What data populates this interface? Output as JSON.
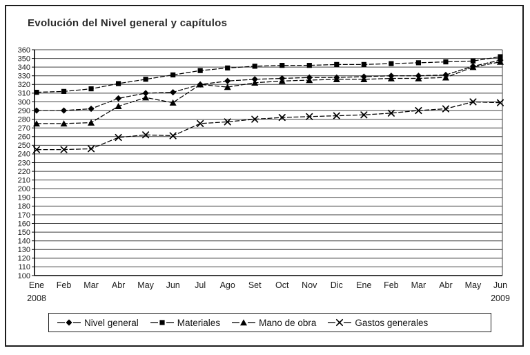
{
  "chart_data": {
    "type": "line",
    "title": "Evolución del Nivel general y capítulos",
    "categories": [
      "Ene",
      "Feb",
      "Mar",
      "Abr",
      "May",
      "Jun",
      "Jul",
      "Ago",
      "Set",
      "Oct",
      "Nov",
      "Dic",
      "Ene",
      "Feb",
      "Mar",
      "Abr",
      "May",
      "Jun"
    ],
    "year_labels": [
      {
        "index": 0,
        "label": "2008"
      },
      {
        "index": 17,
        "label": "2009"
      }
    ],
    "ylim": [
      100,
      360
    ],
    "ytick_step": 10,
    "grid": true,
    "legend_position": "bottom",
    "line_color": "#000000",
    "grid_color": "#3d3d3d",
    "axis_text_color": "#1a1a1a",
    "series": [
      {
        "name": "Nivel general",
        "marker": "diamond",
        "values": [
          290,
          290,
          292,
          304,
          310,
          311,
          320,
          324,
          326,
          327,
          328,
          328,
          329,
          330,
          330,
          331,
          341,
          348
        ]
      },
      {
        "name": "Materiales",
        "marker": "square",
        "values": [
          311,
          312,
          315,
          321,
          326,
          331,
          336,
          339,
          341,
          342,
          342,
          343,
          343,
          344,
          345,
          346,
          347,
          352
        ]
      },
      {
        "name": "Mano de obra",
        "marker": "triangle",
        "values": [
          275,
          275,
          276,
          295,
          305,
          299,
          320,
          317,
          322,
          324,
          325,
          326,
          326,
          327,
          327,
          328,
          340,
          346
        ]
      },
      {
        "name": "Gastos generales",
        "marker": "x",
        "values": [
          245,
          245,
          246,
          259,
          262,
          261,
          275,
          277,
          280,
          282,
          283,
          284,
          285,
          287,
          290,
          292,
          300,
          299
        ]
      }
    ]
  }
}
